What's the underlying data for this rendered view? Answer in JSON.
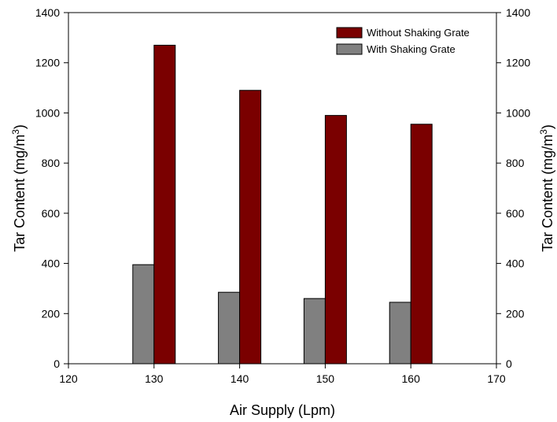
{
  "chart_data": {
    "type": "bar",
    "title": "",
    "xlabel": "Air Supply (Lpm)",
    "ylabel": "Tar Content (mg/m",
    "ylabel_sup": "3",
    "ylabel_close": ")",
    "y2label": "Tar Content (mg/m",
    "y2label_sup": "3",
    "y2label_close": ")",
    "x": [
      130,
      140,
      150,
      160
    ],
    "xlim": [
      120,
      170
    ],
    "xticks": [
      "120",
      "130",
      "140",
      "150",
      "160",
      "170"
    ],
    "ylim": [
      0,
      1400
    ],
    "yticks": [
      "0",
      "200",
      "400",
      "600",
      "800",
      "1000",
      "1200",
      "1400"
    ],
    "y2ticks": [
      "0",
      "200",
      "400",
      "600",
      "800",
      "1000",
      "1200",
      "1400"
    ],
    "grid": false,
    "legend_position": "top-right",
    "series": [
      {
        "name": "Without Shaking Grate",
        "color": "#7a0000",
        "values": [
          1270,
          1090,
          990,
          955
        ]
      },
      {
        "name": "With Shaking Grate",
        "color": "#808080",
        "values": [
          395,
          285,
          260,
          245
        ]
      }
    ]
  }
}
